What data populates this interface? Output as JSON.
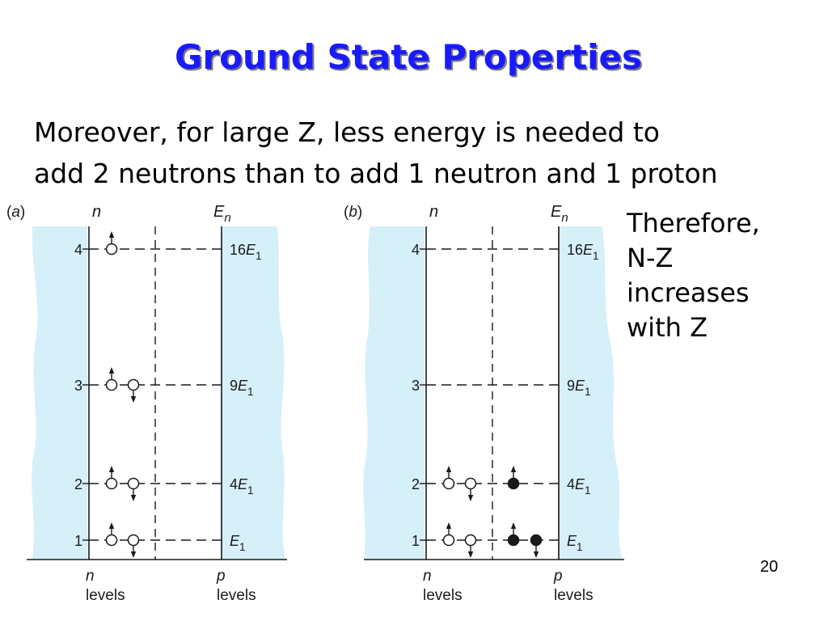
{
  "title": "Ground State Properties",
  "intro": {
    "line1": "Moreover, for large Z, less energy is needed to",
    "line2": "add 2 neutrons than to add 1 neutron and 1 proton"
  },
  "side_note": {
    "line1": "Therefore,",
    "line2": "N-Z",
    "line3": "increases",
    "line4": "with Z"
  },
  "page_number": "20",
  "colors": {
    "title": "#1a1aff",
    "well_fill": "#d6f0fa",
    "ink": "#1a1a1a"
  },
  "diagram": {
    "panels": [
      {
        "label_open": "(",
        "label_letter": "a",
        "label_close": ")",
        "n_header": "n",
        "e_header": "E",
        "e_header_sub": "n",
        "bottom_left_var": "n",
        "bottom_left_word": "levels",
        "bottom_right_var": "p",
        "bottom_right_word": "levels",
        "levels": [
          {
            "n": "4",
            "energy_coef": "16",
            "energy_sym": "E",
            "energy_sub": "1",
            "neutrons": [
              "up"
            ],
            "protons": []
          },
          {
            "n": "3",
            "energy_coef": "9",
            "energy_sym": "E",
            "energy_sub": "1",
            "neutrons": [
              "up",
              "down"
            ],
            "protons": []
          },
          {
            "n": "2",
            "energy_coef": "4",
            "energy_sym": "E",
            "energy_sub": "1",
            "neutrons": [
              "up",
              "down"
            ],
            "protons": []
          },
          {
            "n": "1",
            "energy_coef": "",
            "energy_sym": "E",
            "energy_sub": "1",
            "neutrons": [
              "up",
              "down"
            ],
            "protons": []
          }
        ]
      },
      {
        "label_open": "(",
        "label_letter": "b",
        "label_close": ")",
        "n_header": "n",
        "e_header": "E",
        "e_header_sub": "n",
        "bottom_left_var": "n",
        "bottom_left_word": "levels",
        "bottom_right_var": "p",
        "bottom_right_word": "levels",
        "levels": [
          {
            "n": "4",
            "energy_coef": "16",
            "energy_sym": "E",
            "energy_sub": "1",
            "neutrons": [],
            "protons": []
          },
          {
            "n": "3",
            "energy_coef": "9",
            "energy_sym": "E",
            "energy_sub": "1",
            "neutrons": [],
            "protons": []
          },
          {
            "n": "2",
            "energy_coef": "4",
            "energy_sym": "E",
            "energy_sub": "1",
            "neutrons": [
              "up",
              "down"
            ],
            "protons": [
              "up"
            ]
          },
          {
            "n": "1",
            "energy_coef": "",
            "energy_sym": "E",
            "energy_sub": "1",
            "neutrons": [
              "up",
              "down"
            ],
            "protons": [
              "up",
              "down"
            ]
          }
        ]
      }
    ]
  }
}
